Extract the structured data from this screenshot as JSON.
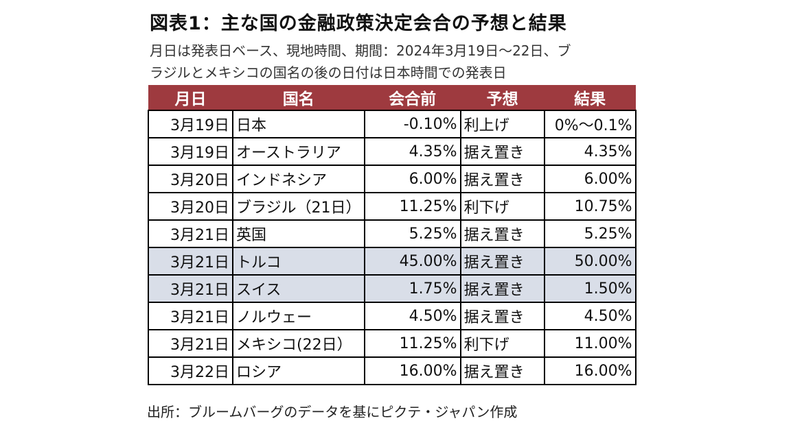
{
  "title": "図表1：主な国の金融政策決定会合の予想と結果",
  "subtitle_line1": "月日は発表日ベース、現地時間、期間：2024年3月19日～22日、ブ",
  "subtitle_line2": "ラジルとメキシコの国名の後の日付は日本時間での発表日",
  "colors": {
    "header_bg": "#9e3a3f",
    "highlight_bg": "#d9dee8"
  },
  "table": {
    "headers": [
      "月日",
      "国名",
      "会合前",
      "予想",
      "結果"
    ],
    "rows": [
      {
        "cells": [
          "3月19日",
          "日本",
          "-0.10%",
          "利上げ",
          "0%～0.1%"
        ],
        "highlight": false
      },
      {
        "cells": [
          "3月19日",
          "オーストラリア",
          "4.35%",
          "据え置き",
          "4.35%"
        ],
        "highlight": false
      },
      {
        "cells": [
          "3月20日",
          "インドネシア",
          "6.00%",
          "据え置き",
          "6.00%"
        ],
        "highlight": false
      },
      {
        "cells": [
          "3月20日",
          "ブラジル（21日）",
          "11.25%",
          "利下げ",
          "10.75%"
        ],
        "highlight": false
      },
      {
        "cells": [
          "3月21日",
          "英国",
          "5.25%",
          "据え置き",
          "5.25%"
        ],
        "highlight": false
      },
      {
        "cells": [
          "3月21日",
          "トルコ",
          "45.00%",
          "据え置き",
          "50.00%"
        ],
        "highlight": true
      },
      {
        "cells": [
          "3月21日",
          "スイス",
          "1.75%",
          "据え置き",
          "1.50%"
        ],
        "highlight": true
      },
      {
        "cells": [
          "3月21日",
          "ノルウェー",
          "4.50%",
          "据え置き",
          "4.50%"
        ],
        "highlight": false
      },
      {
        "cells": [
          "3月21日",
          "メキシコ(22日）",
          "11.25%",
          "利下げ",
          "11.00%"
        ],
        "highlight": false
      },
      {
        "cells": [
          "3月22日",
          "ロシア",
          "16.00%",
          "据え置き",
          "16.00%"
        ],
        "highlight": false
      }
    ]
  },
  "source": "出所：ブルームバーグのデータを基にピクテ・ジャパン作成"
}
